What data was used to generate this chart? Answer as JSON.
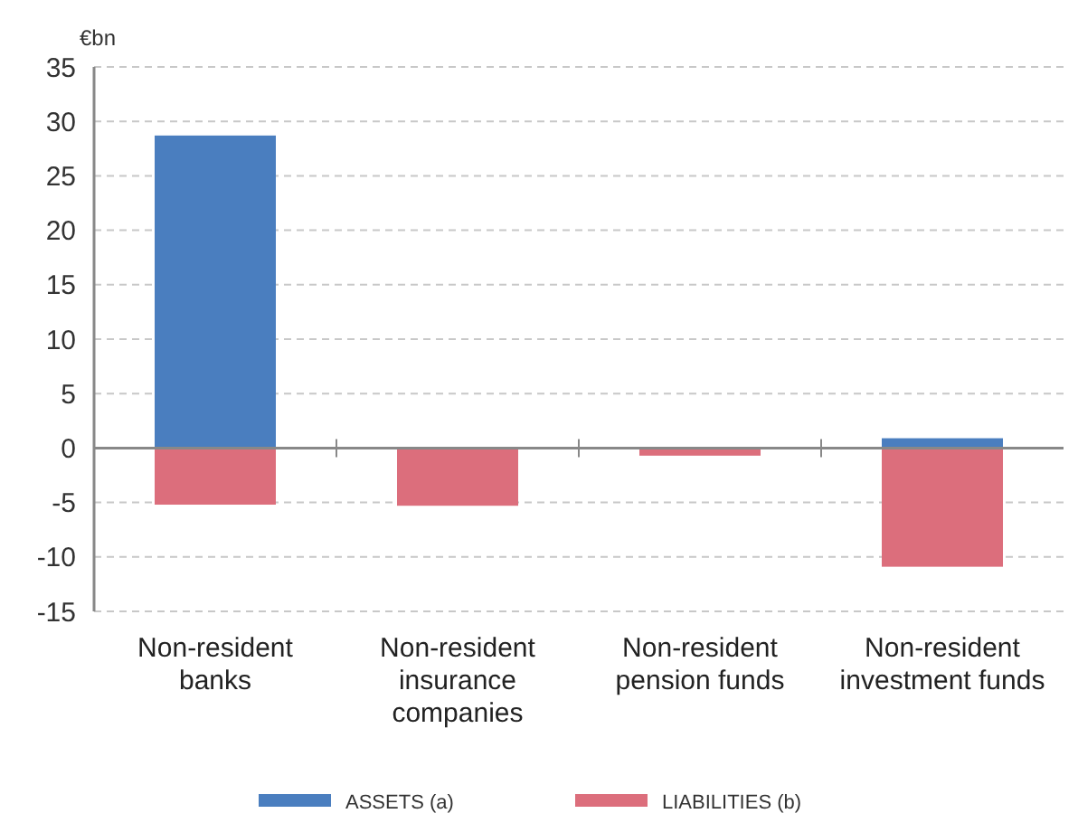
{
  "chart_data": {
    "type": "bar",
    "stacked": true,
    "ylabel": "€bn",
    "categories": [
      "Non-resident banks",
      "Non-resident insurance companies",
      "Non-resident pension funds",
      "Non-resident investment funds"
    ],
    "series": [
      {
        "name": "ASSETS (a)",
        "color": "#4a7ebf",
        "values": [
          28.7,
          0.1,
          0,
          0.9
        ]
      },
      {
        "name": "LIABILITIES (b)",
        "color": "#dc6e7c",
        "values": [
          -5.2,
          -5.3,
          -0.7,
          -10.9
        ]
      }
    ],
    "ylim": [
      -15,
      35
    ],
    "yticks": [
      -15,
      -10,
      -5,
      0,
      5,
      10,
      15,
      20,
      25,
      30,
      35
    ],
    "grid": "y",
    "legend": "bottom"
  }
}
